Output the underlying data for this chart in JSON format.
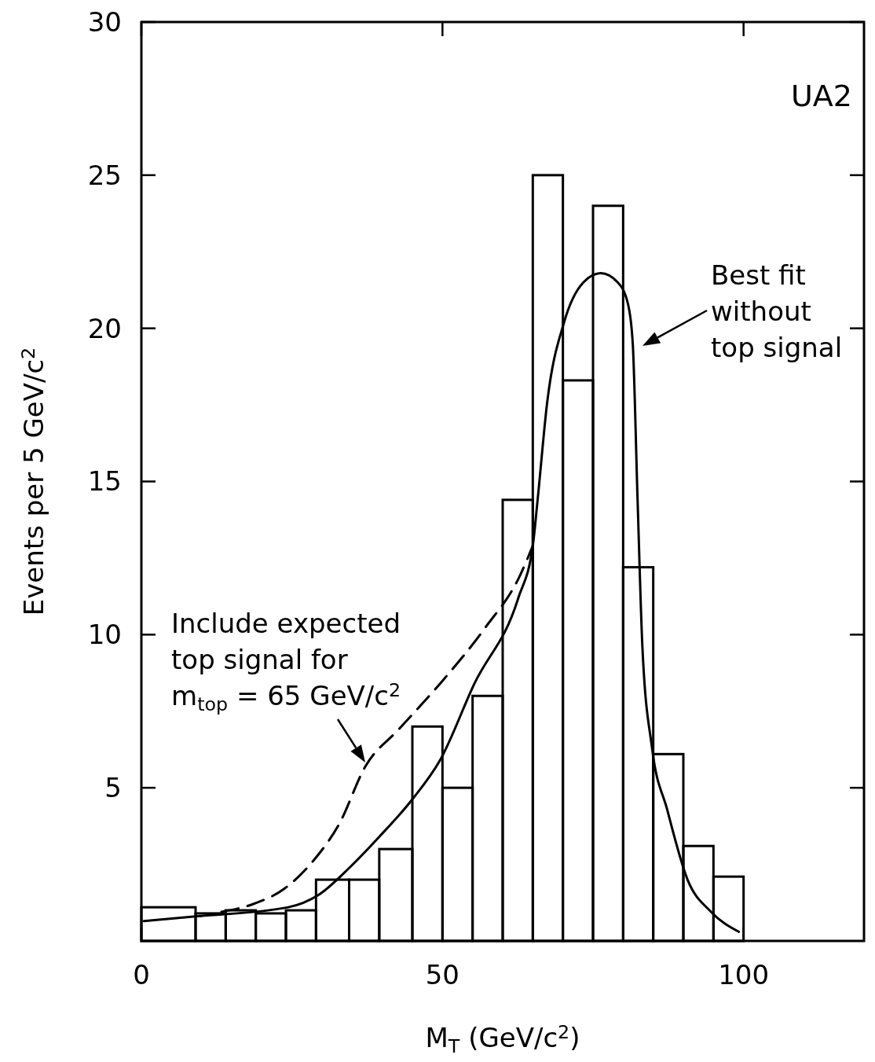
{
  "chart_data": {
    "type": "histogram",
    "xlabel": "M$_{T}$  (GeV/c$^{2}$)",
    "ylabel": "Events per  5 GeV/c$^{2}$",
    "xlim": [
      0,
      120
    ],
    "ylim": [
      0,
      30
    ],
    "xticks": [
      0,
      50,
      100
    ],
    "yticks": [
      5,
      10,
      15,
      20,
      25,
      30
    ],
    "grid": false,
    "series": [
      {
        "color": "#000000",
        "bins": [
          0,
          9,
          14,
          19,
          24,
          29,
          34.5,
          39.5,
          45,
          50,
          55,
          60,
          65,
          70,
          75,
          80,
          85,
          90,
          95,
          100
        ],
        "values": [
          1.1,
          0.9,
          1.0,
          0.9,
          1.0,
          2,
          2,
          3,
          7,
          5,
          8,
          14.4,
          25,
          18.3,
          24,
          12.2,
          6.1,
          3.1,
          2.1
        ]
      },
      {
        "type": "line",
        "color": "#000000",
        "line_style": "solid",
        "x": [
          0.4,
          9,
          24.4,
          29.4,
          34.6,
          39.5,
          44.9,
          49.6,
          55.3,
          62.6,
          65,
          65.8,
          67.4,
          70.2,
          73.4,
          76.3,
          79.1,
          80.8,
          81.6,
          82.4,
          83.2,
          84.8,
          87.3,
          90.7,
          94.6,
          99.2
        ],
        "values": [
          0.65,
          0.8,
          1.1,
          1.5,
          2.4,
          3.4,
          4.6,
          5.9,
          8.4,
          11.2,
          12.9,
          14.4,
          17.6,
          20.2,
          21.5,
          21.8,
          21.5,
          20.8,
          19.5,
          14.4,
          9.6,
          6.3,
          4.3,
          2.0,
          0.95,
          0.3
        ]
      },
      {
        "type": "line",
        "color": "#000000",
        "line_style": "dashed",
        "x": [
          13.3,
          18.5,
          23.7,
          28.9,
          32.8,
          37.2,
          42.7,
          49.6,
          57,
          62.8,
          65
        ],
        "values": [
          0.95,
          1.2,
          1.7,
          2.7,
          3.8,
          5.7,
          6.9,
          8.4,
          10.2,
          11.9,
          12.9
        ]
      }
    ],
    "annotations": [
      "UA2",
      "Best fit\nwithout\ntop signal",
      "Include expected\ntop signal for\nm$_{top}$ = 65 GeV/c$^{2}$"
    ]
  }
}
